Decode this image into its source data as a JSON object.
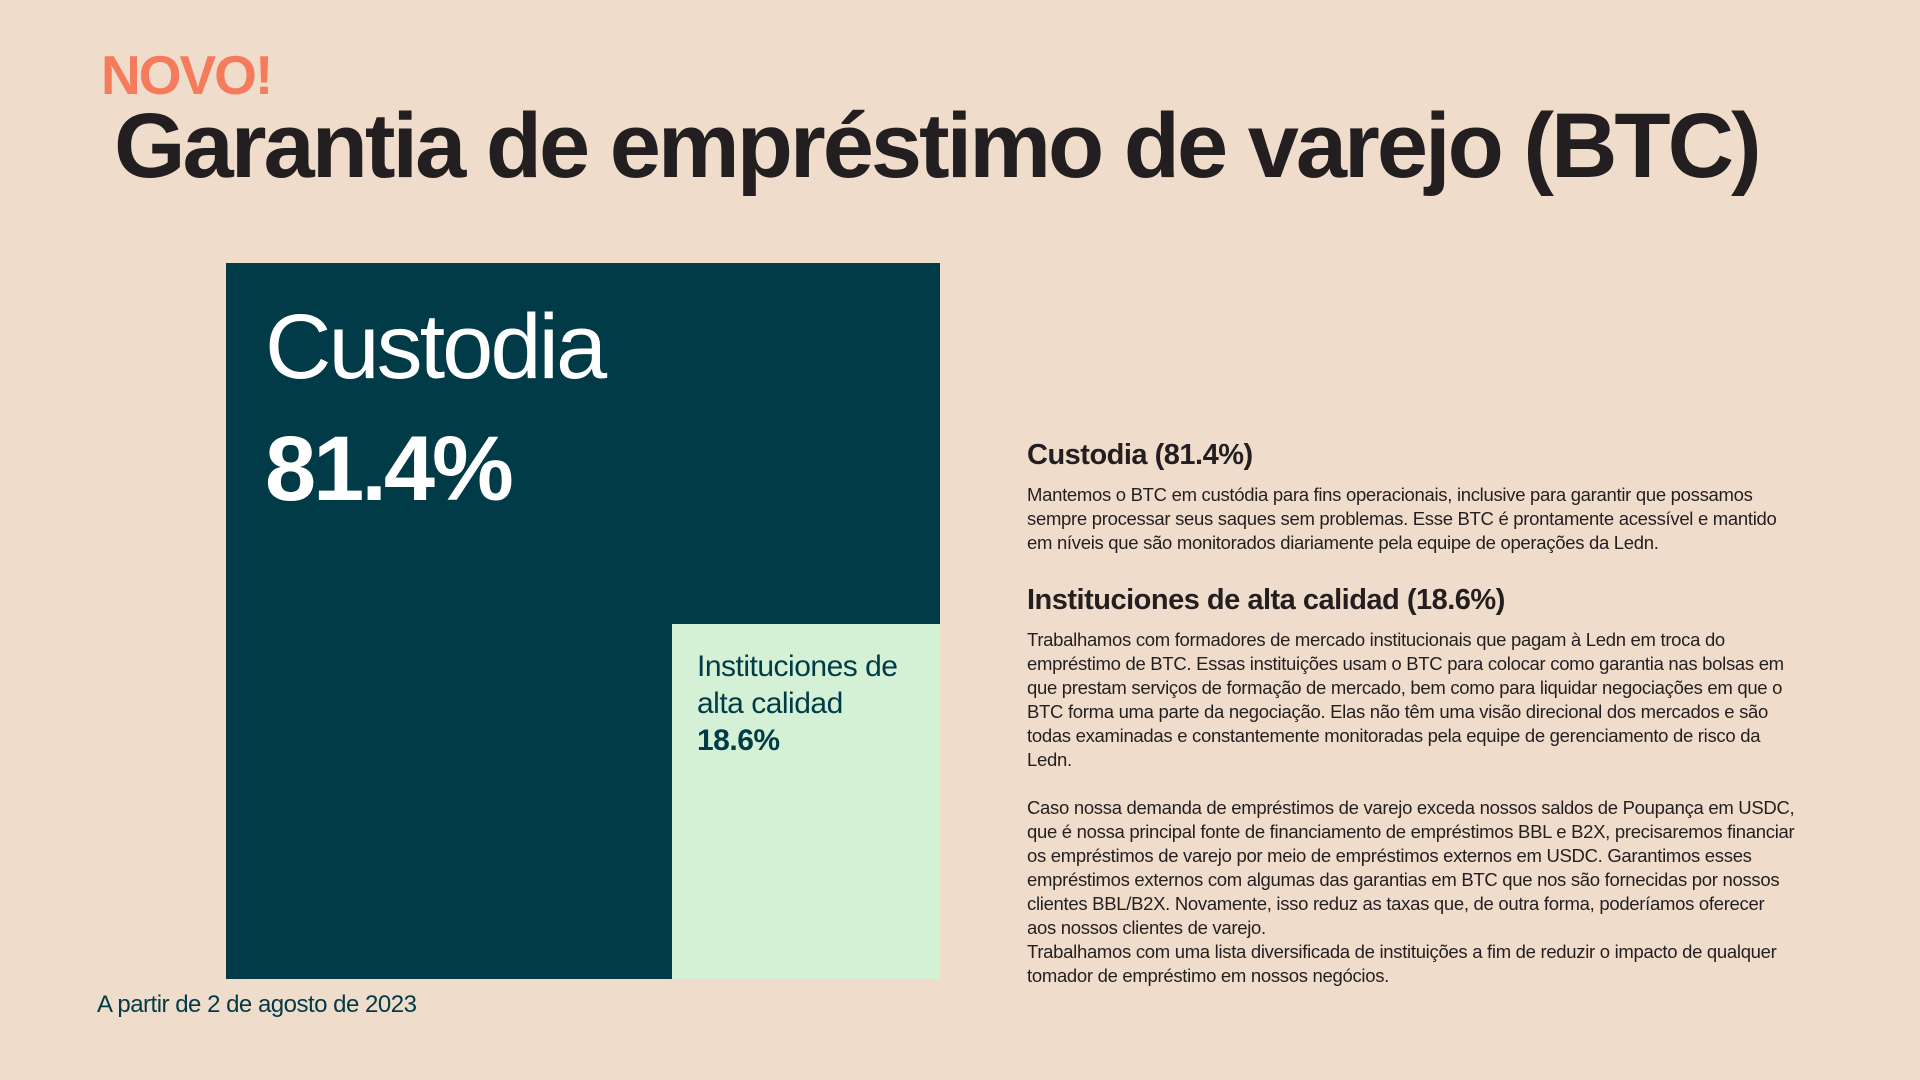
{
  "header": {
    "kicker": "NOVO!",
    "title": "Garantia de empréstimo de varejo (BTC)"
  },
  "chart_data": {
    "type": "treemap",
    "title": "",
    "units": "%",
    "colors": {
      "Custodia": "#003b47",
      "Instituciones de alta calidad": "#d4f0d5"
    },
    "series": [
      {
        "name": "Custodia",
        "value": 81.4,
        "label": "Custodia",
        "value_label": "81.4%"
      },
      {
        "name": "Instituciones de alta calidad",
        "value": 18.6,
        "label": "Instituciones de alta calidad",
        "value_label": "18.6%"
      }
    ]
  },
  "footnote": "A partir de 2 de agosto de 2023",
  "details": {
    "custody": {
      "heading": "Custodia (81.4%)",
      "body": "Mantemos o BTC em custódia para fins operacionais, inclusive para garantir que possamos sempre processar seus saques sem problemas. Esse BTC é prontamente acessível e mantido em níveis que são monitorados diariamente pela equipe de operações da Ledn."
    },
    "institutions": {
      "heading": "Instituciones de alta calidad (18.6%)",
      "body1": "Trabalhamos com formadores de mercado institucionais que pagam à Ledn em troca do empréstimo de BTC. Essas instituições usam o BTC para colocar como garantia nas bolsas em que prestam serviços de formação de mercado, bem como para liquidar negociações em que o BTC forma uma parte da negociação.  Elas não têm uma visão direcional dos mercados e são todas examinadas e constantemente monitoradas pela equipe de gerenciamento de risco da Ledn.",
      "body2": "Caso nossa demanda de empréstimos de varejo exceda nossos saldos de Poupança em USDC, que é nossa principal fonte de financiamento de empréstimos BBL e B2X, precisaremos financiar os empréstimos de varejo por meio de empréstimos externos em USDC. Garantimos esses empréstimos externos com algumas das garantias em BTC que nos são fornecidas por nossos clientes BBL/B2X. Novamente, isso reduz as taxas que, de outra forma, poderíamos oferecer aos nossos clientes de varejo.",
      "body3": "Trabalhamos com uma lista diversificada de instituições a fim de reduzir o impacto de qualquer tomador de empréstimo em nossos negócios."
    }
  }
}
